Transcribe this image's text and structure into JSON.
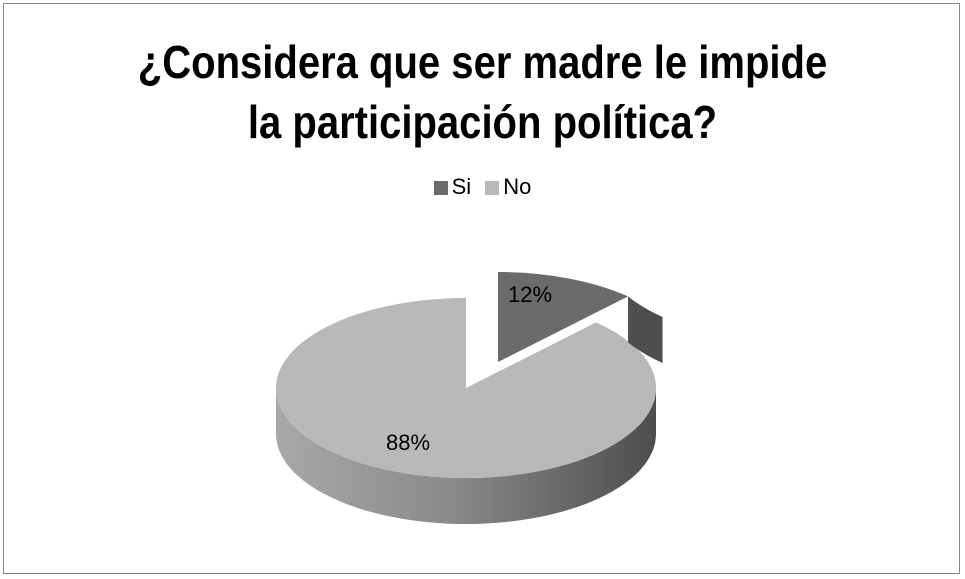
{
  "chart_data": {
    "type": "pie",
    "title": "¿Considera que ser madre le impide la participación política?",
    "title_lines": [
      "¿Considera que ser madre le impide",
      "la participación política?"
    ],
    "categories": [
      "Si",
      "No"
    ],
    "values": [
      12,
      88
    ],
    "data_labels": [
      "12%",
      "88%"
    ],
    "legend": {
      "position": "top",
      "entries": [
        "Si",
        "No"
      ]
    },
    "exploded_slice": "Si",
    "style": "3d"
  },
  "colors": {
    "si_top": "#6b6b6b",
    "si_side": "#4e4e4e",
    "no_top": "#b8b8b8",
    "no_side_light": "#9a9a9a",
    "no_side_dark": "#5a5a5a",
    "border": "#8a8a8a"
  }
}
